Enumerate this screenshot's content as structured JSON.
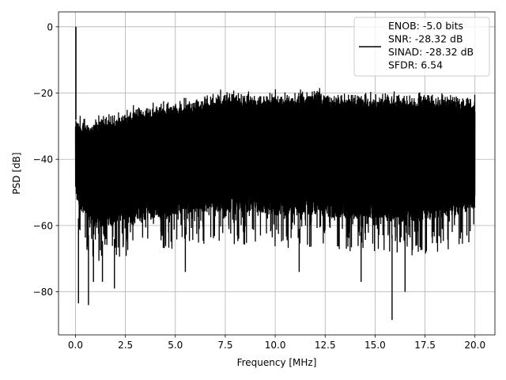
{
  "chart_data": {
    "type": "line",
    "xlabel": "Frequency [MHz]",
    "ylabel": "PSD [dB]",
    "xlim": [
      -0.85,
      21.0
    ],
    "ylim": [
      -93.0,
      4.5
    ],
    "xticks": [
      0.0,
      2.5,
      5.0,
      7.5,
      10.0,
      12.5,
      15.0,
      17.5,
      20.0
    ],
    "xtick_labels": [
      "0.0",
      "2.5",
      "5.0",
      "7.5",
      "10.0",
      "12.5",
      "15.0",
      "17.5",
      "20.0"
    ],
    "yticks": [
      0,
      -20,
      -40,
      -60,
      -80
    ],
    "ytick_labels": [
      "0",
      "−20",
      "−40",
      "−60",
      "−80"
    ],
    "grid": true,
    "legend_position": "upper right",
    "series": [
      {
        "name": "ENOB: -5.0 bits\nSNR: -28.32 dB\nSINAD: -28.32 dB\nSFDR: 6.54",
        "color": "#000000",
        "freq_range_mhz": [
          0.0,
          20.0
        ],
        "peak": {
          "x": 0.02,
          "y": 0.0
        },
        "envelope_x": [
          0.0,
          0.5,
          1.0,
          2.0,
          3.0,
          4.0,
          5.0,
          6.0,
          7.5,
          9.0,
          10.0,
          11.0,
          12.0,
          13.0,
          14.0,
          15.0,
          16.0,
          17.0,
          18.0,
          19.0,
          20.0
        ],
        "envelope_upper": [
          -25.0,
          -27.0,
          -26.0,
          -25.0,
          -23.0,
          -22.0,
          -21.0,
          -20.0,
          -18.0,
          -18.5,
          -18.0,
          -18.5,
          -17.5,
          -18.5,
          -18.5,
          -19.0,
          -19.0,
          -19.0,
          -19.0,
          -19.5,
          -20.0
        ],
        "envelope_lower": [
          -62.0,
          -68.0,
          -71.0,
          -70.0,
          -69.0,
          -68.0,
          -67.0,
          -66.0,
          -66.0,
          -66.0,
          -67.0,
          -67.0,
          -67.0,
          -68.0,
          -68.0,
          -68.0,
          -69.0,
          -69.0,
          -68.0,
          -67.0,
          -65.0
        ],
        "deep_nulls": [
          {
            "x": 0.15,
            "y": -83.5
          },
          {
            "x": 0.65,
            "y": -84.0
          },
          {
            "x": 0.9,
            "y": -77.0
          },
          {
            "x": 1.35,
            "y": -77.0
          },
          {
            "x": 1.95,
            "y": -79.0
          },
          {
            "x": 14.3,
            "y": -77.0
          },
          {
            "x": 15.85,
            "y": -88.5
          },
          {
            "x": 16.5,
            "y": -80.0
          },
          {
            "x": 5.5,
            "y": -74.0
          },
          {
            "x": 11.2,
            "y": -74.0
          }
        ]
      }
    ]
  }
}
